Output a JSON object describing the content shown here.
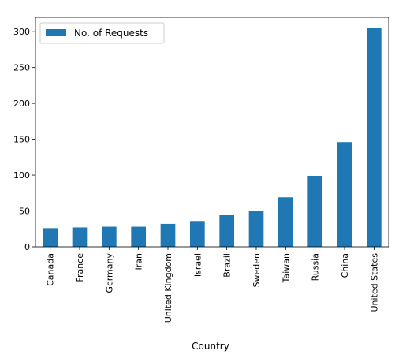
{
  "chart_data": {
    "type": "bar",
    "title": "",
    "xlabel": "Country",
    "ylabel": "",
    "categories": [
      "Canada",
      "France",
      "Germany",
      "Iran",
      "United Kingdom",
      "Israel",
      "Brazil",
      "Sweden",
      "Taiwan",
      "Russia",
      "China",
      "United States"
    ],
    "series": [
      {
        "name": "No. of Requests",
        "color": "#1f77b4",
        "values": [
          26,
          27,
          28,
          28,
          32,
          36,
          44,
          50,
          69,
          99,
          146,
          305
        ]
      }
    ],
    "ylim": [
      0,
      320
    ],
    "yticks": [
      0,
      50,
      100,
      150,
      200,
      250,
      300
    ],
    "grid": false,
    "legend_position": "top-left"
  }
}
